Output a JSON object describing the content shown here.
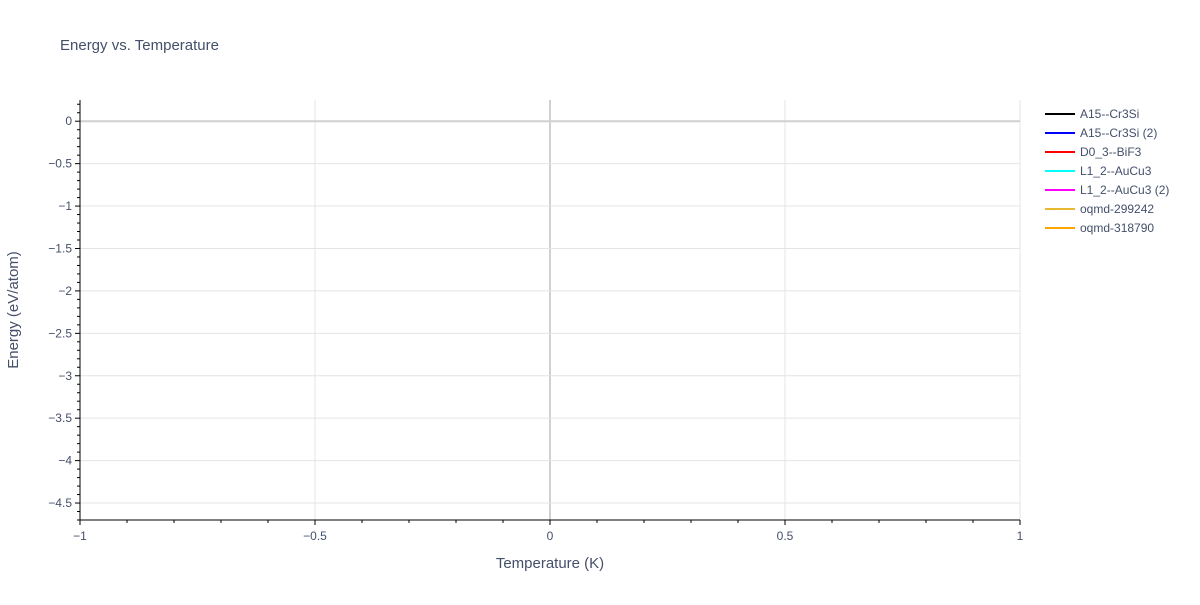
{
  "chart_data": {
    "type": "line",
    "title": "Energy vs. Temperature",
    "xlabel": "Temperature (K)",
    "ylabel": "Energy (eV/atom)",
    "xlim": [
      -1,
      1
    ],
    "ylim": [
      -4.7,
      0.25
    ],
    "xticks": [
      -1,
      -0.5,
      0,
      0.5,
      1
    ],
    "xtick_labels": [
      "−1",
      "−0.5",
      "0",
      "0.5",
      "1"
    ],
    "yticks": [
      0,
      -0.5,
      -1,
      -1.5,
      -2,
      -2.5,
      -3,
      -3.5,
      -4,
      -4.5
    ],
    "ytick_labels": [
      "0",
      "−0.5",
      "−1",
      "−1.5",
      "−2",
      "−2.5",
      "−3",
      "−3.5",
      "−4",
      "−4.5"
    ],
    "grid": true,
    "legend_position": "right",
    "series": [
      {
        "name": "A15--Cr3Si",
        "color": "#000000",
        "x": [],
        "y": []
      },
      {
        "name": "A15--Cr3Si (2)",
        "color": "#0000ff",
        "x": [],
        "y": []
      },
      {
        "name": "D0_3--BiF3",
        "color": "#ff0000",
        "x": [],
        "y": []
      },
      {
        "name": "L1_2--AuCu3",
        "color": "#00ffff",
        "x": [],
        "y": []
      },
      {
        "name": "L1_2--AuCu3 (2)",
        "color": "#ff00ff",
        "x": [],
        "y": []
      },
      {
        "name": "oqmd-299242",
        "color": "#e8b830",
        "x": [],
        "y": []
      },
      {
        "name": "oqmd-318790",
        "color": "#ffa500",
        "x": [],
        "y": []
      }
    ]
  }
}
